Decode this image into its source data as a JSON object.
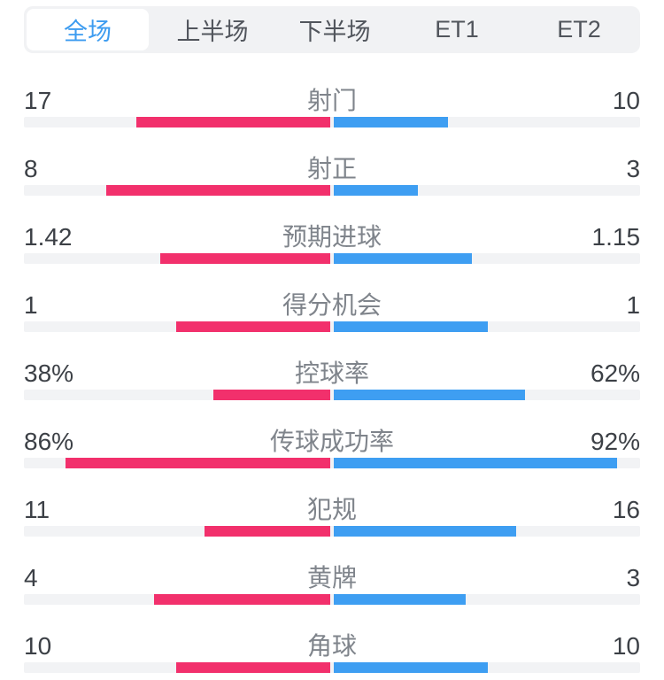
{
  "tabs": {
    "active_index": 0,
    "items": [
      {
        "label": "全场"
      },
      {
        "label": "上半场"
      },
      {
        "label": "下半场"
      },
      {
        "label": "ET1"
      },
      {
        "label": "ET2"
      }
    ]
  },
  "colors": {
    "home": "#F2306C",
    "away": "#3E9EF2",
    "track": "#F2F3F5",
    "tabbar_bg": "#F1F2F4",
    "tab_active_text": "#3D9CF0",
    "tab_text": "#51555C",
    "value_text": "#3C4046",
    "label_text": "#7F848B"
  },
  "stats": [
    {
      "label": "射门",
      "home": "17",
      "away": "10"
    },
    {
      "label": "射正",
      "home": "8",
      "away": "3"
    },
    {
      "label": "预期进球",
      "home": "1.42",
      "away": "1.15"
    },
    {
      "label": "得分机会",
      "home": "1",
      "away": "1"
    },
    {
      "label": "控球率",
      "home": "38%",
      "away": "62%"
    },
    {
      "label": "传球成功率",
      "home": "86%",
      "away": "92%"
    },
    {
      "label": "犯规",
      "home": "11",
      "away": "16"
    },
    {
      "label": "黄牌",
      "home": "4",
      "away": "3"
    },
    {
      "label": "角球",
      "home": "10",
      "away": "10"
    }
  ],
  "chart_data": {
    "type": "bar",
    "orientation": "horizontal-paired-from-center",
    "categories": [
      "射门",
      "射正",
      "预期进球",
      "得分机会",
      "控球率",
      "传球成功率",
      "犯规",
      "黄牌",
      "角球"
    ],
    "series": [
      {
        "name": "home",
        "color": "#F2306C",
        "values": [
          17,
          8,
          1.42,
          1,
          38,
          86,
          11,
          4,
          10
        ]
      },
      {
        "name": "away",
        "color": "#3E9EF2",
        "values": [
          10,
          3,
          1.15,
          1,
          62,
          92,
          16,
          3,
          10
        ]
      }
    ],
    "percent_categories": [
      "控球率",
      "传球成功率"
    ],
    "bar_rule": "percent stats scale value/100 of half-track; count stats scale value/(home+away)"
  }
}
